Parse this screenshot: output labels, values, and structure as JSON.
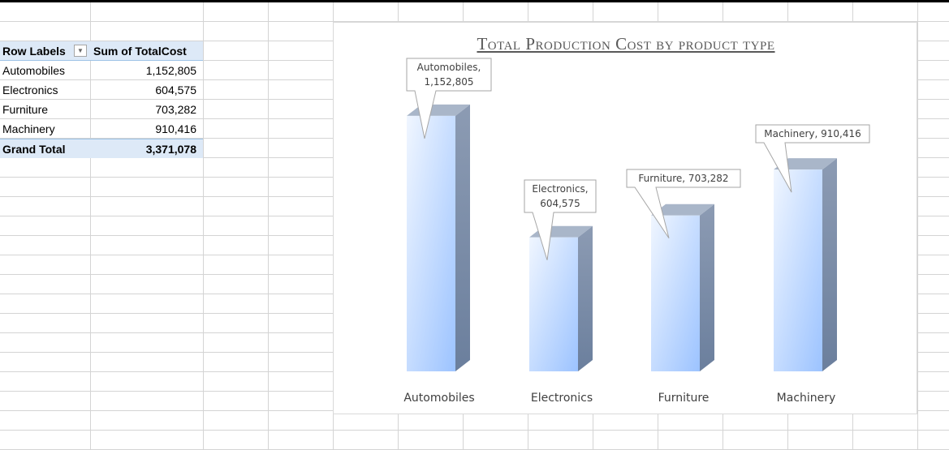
{
  "pivot": {
    "header_label": "Row Labels",
    "header_value": "Sum of TotalCost",
    "filter_icon": "dropdown-arrow-icon",
    "rows": [
      {
        "label": "Automobiles",
        "value": "1,152,805"
      },
      {
        "label": "Electronics",
        "value": "604,575"
      },
      {
        "label": "Furniture",
        "value": "703,282"
      },
      {
        "label": "Machinery",
        "value": "910,416"
      }
    ],
    "total_label": "Grand Total",
    "total_value": "3,371,078"
  },
  "chart_data": {
    "type": "bar",
    "title": "Total Production Cost by product type",
    "categories": [
      "Automobiles",
      "Electronics",
      "Furniture",
      "Machinery"
    ],
    "values": [
      1152805,
      604575,
      703282,
      910416
    ],
    "data_labels": [
      [
        "Automobiles,",
        "1,152,805"
      ],
      [
        "Electronics,",
        "604,575"
      ],
      [
        "Furniture,  703,282"
      ],
      [
        "Machinery,  910,416"
      ]
    ],
    "xlabel": "",
    "ylabel": "",
    "ylim": [
      0,
      1200000
    ],
    "grid": false,
    "legend": "none",
    "colors": {
      "front_light": "#f0f6ff",
      "front_dark": "#9cc3ff",
      "side": "#6b7f9d",
      "top": "#a9b6c9",
      "label_border": "#a6a6a6",
      "label_text": "#404040"
    }
  }
}
